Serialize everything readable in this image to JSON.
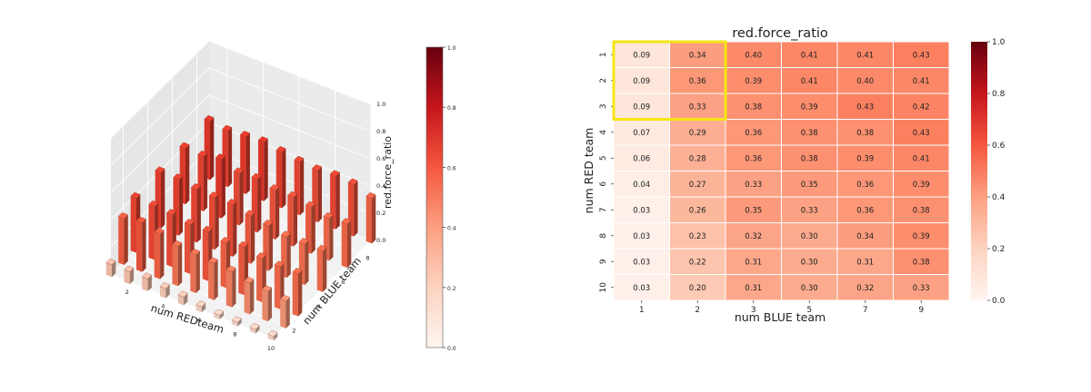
{
  "chart_data": [
    {
      "type": "bar3d",
      "xlabel": "num REDteam",
      "ylabel": "num BLUE team",
      "zlabel": "red.force_ratio",
      "x_ticks": [
        "2",
        "4",
        "6",
        "8",
        "10"
      ],
      "y_ticks": [
        "2",
        "4",
        "6",
        "8"
      ],
      "z_ticks": [
        "0.0",
        "0.2",
        "0.4",
        "0.6",
        "0.8",
        "1.0"
      ],
      "zlim": [
        0,
        1
      ],
      "grid": true,
      "colorbar": {
        "colormap": "Reds",
        "range": [
          0,
          1
        ],
        "ticks": [
          "0.0",
          "0.2",
          "0.4",
          "0.6",
          "0.8",
          "1.0"
        ]
      }
    },
    {
      "type": "heatmap",
      "title": "red.force_ratio",
      "xlabel": "num BLUE team",
      "ylabel": "num RED team",
      "x_categories": [
        "1",
        "2",
        "3",
        "5",
        "7",
        "9"
      ],
      "y_categories": [
        "1",
        "2",
        "3",
        "4",
        "5",
        "6",
        "7",
        "8",
        "9",
        "10"
      ],
      "values": [
        [
          0.09,
          0.34,
          0.4,
          0.41,
          0.41,
          0.43
        ],
        [
          0.09,
          0.36,
          0.39,
          0.41,
          0.4,
          0.41
        ],
        [
          0.09,
          0.33,
          0.38,
          0.39,
          0.43,
          0.42
        ],
        [
          0.07,
          0.29,
          0.36,
          0.38,
          0.38,
          0.43
        ],
        [
          0.06,
          0.28,
          0.36,
          0.38,
          0.39,
          0.41
        ],
        [
          0.04,
          0.27,
          0.33,
          0.35,
          0.36,
          0.39
        ],
        [
          0.03,
          0.26,
          0.35,
          0.33,
          0.36,
          0.38
        ],
        [
          0.03,
          0.23,
          0.32,
          0.3,
          0.34,
          0.39
        ],
        [
          0.03,
          0.22,
          0.31,
          0.3,
          0.31,
          0.38
        ],
        [
          0.03,
          0.2,
          0.31,
          0.3,
          0.32,
          0.33
        ]
      ],
      "highlight": {
        "rows": [
          "1",
          "3"
        ],
        "cols": [
          "1",
          "2"
        ],
        "color": "#f5e616"
      },
      "colorbar": {
        "colormap": "Reds",
        "range": [
          0,
          1
        ],
        "ticks": [
          "0.0",
          "0.2",
          "0.4",
          "0.6",
          "0.8",
          "1.0"
        ]
      }
    }
  ]
}
